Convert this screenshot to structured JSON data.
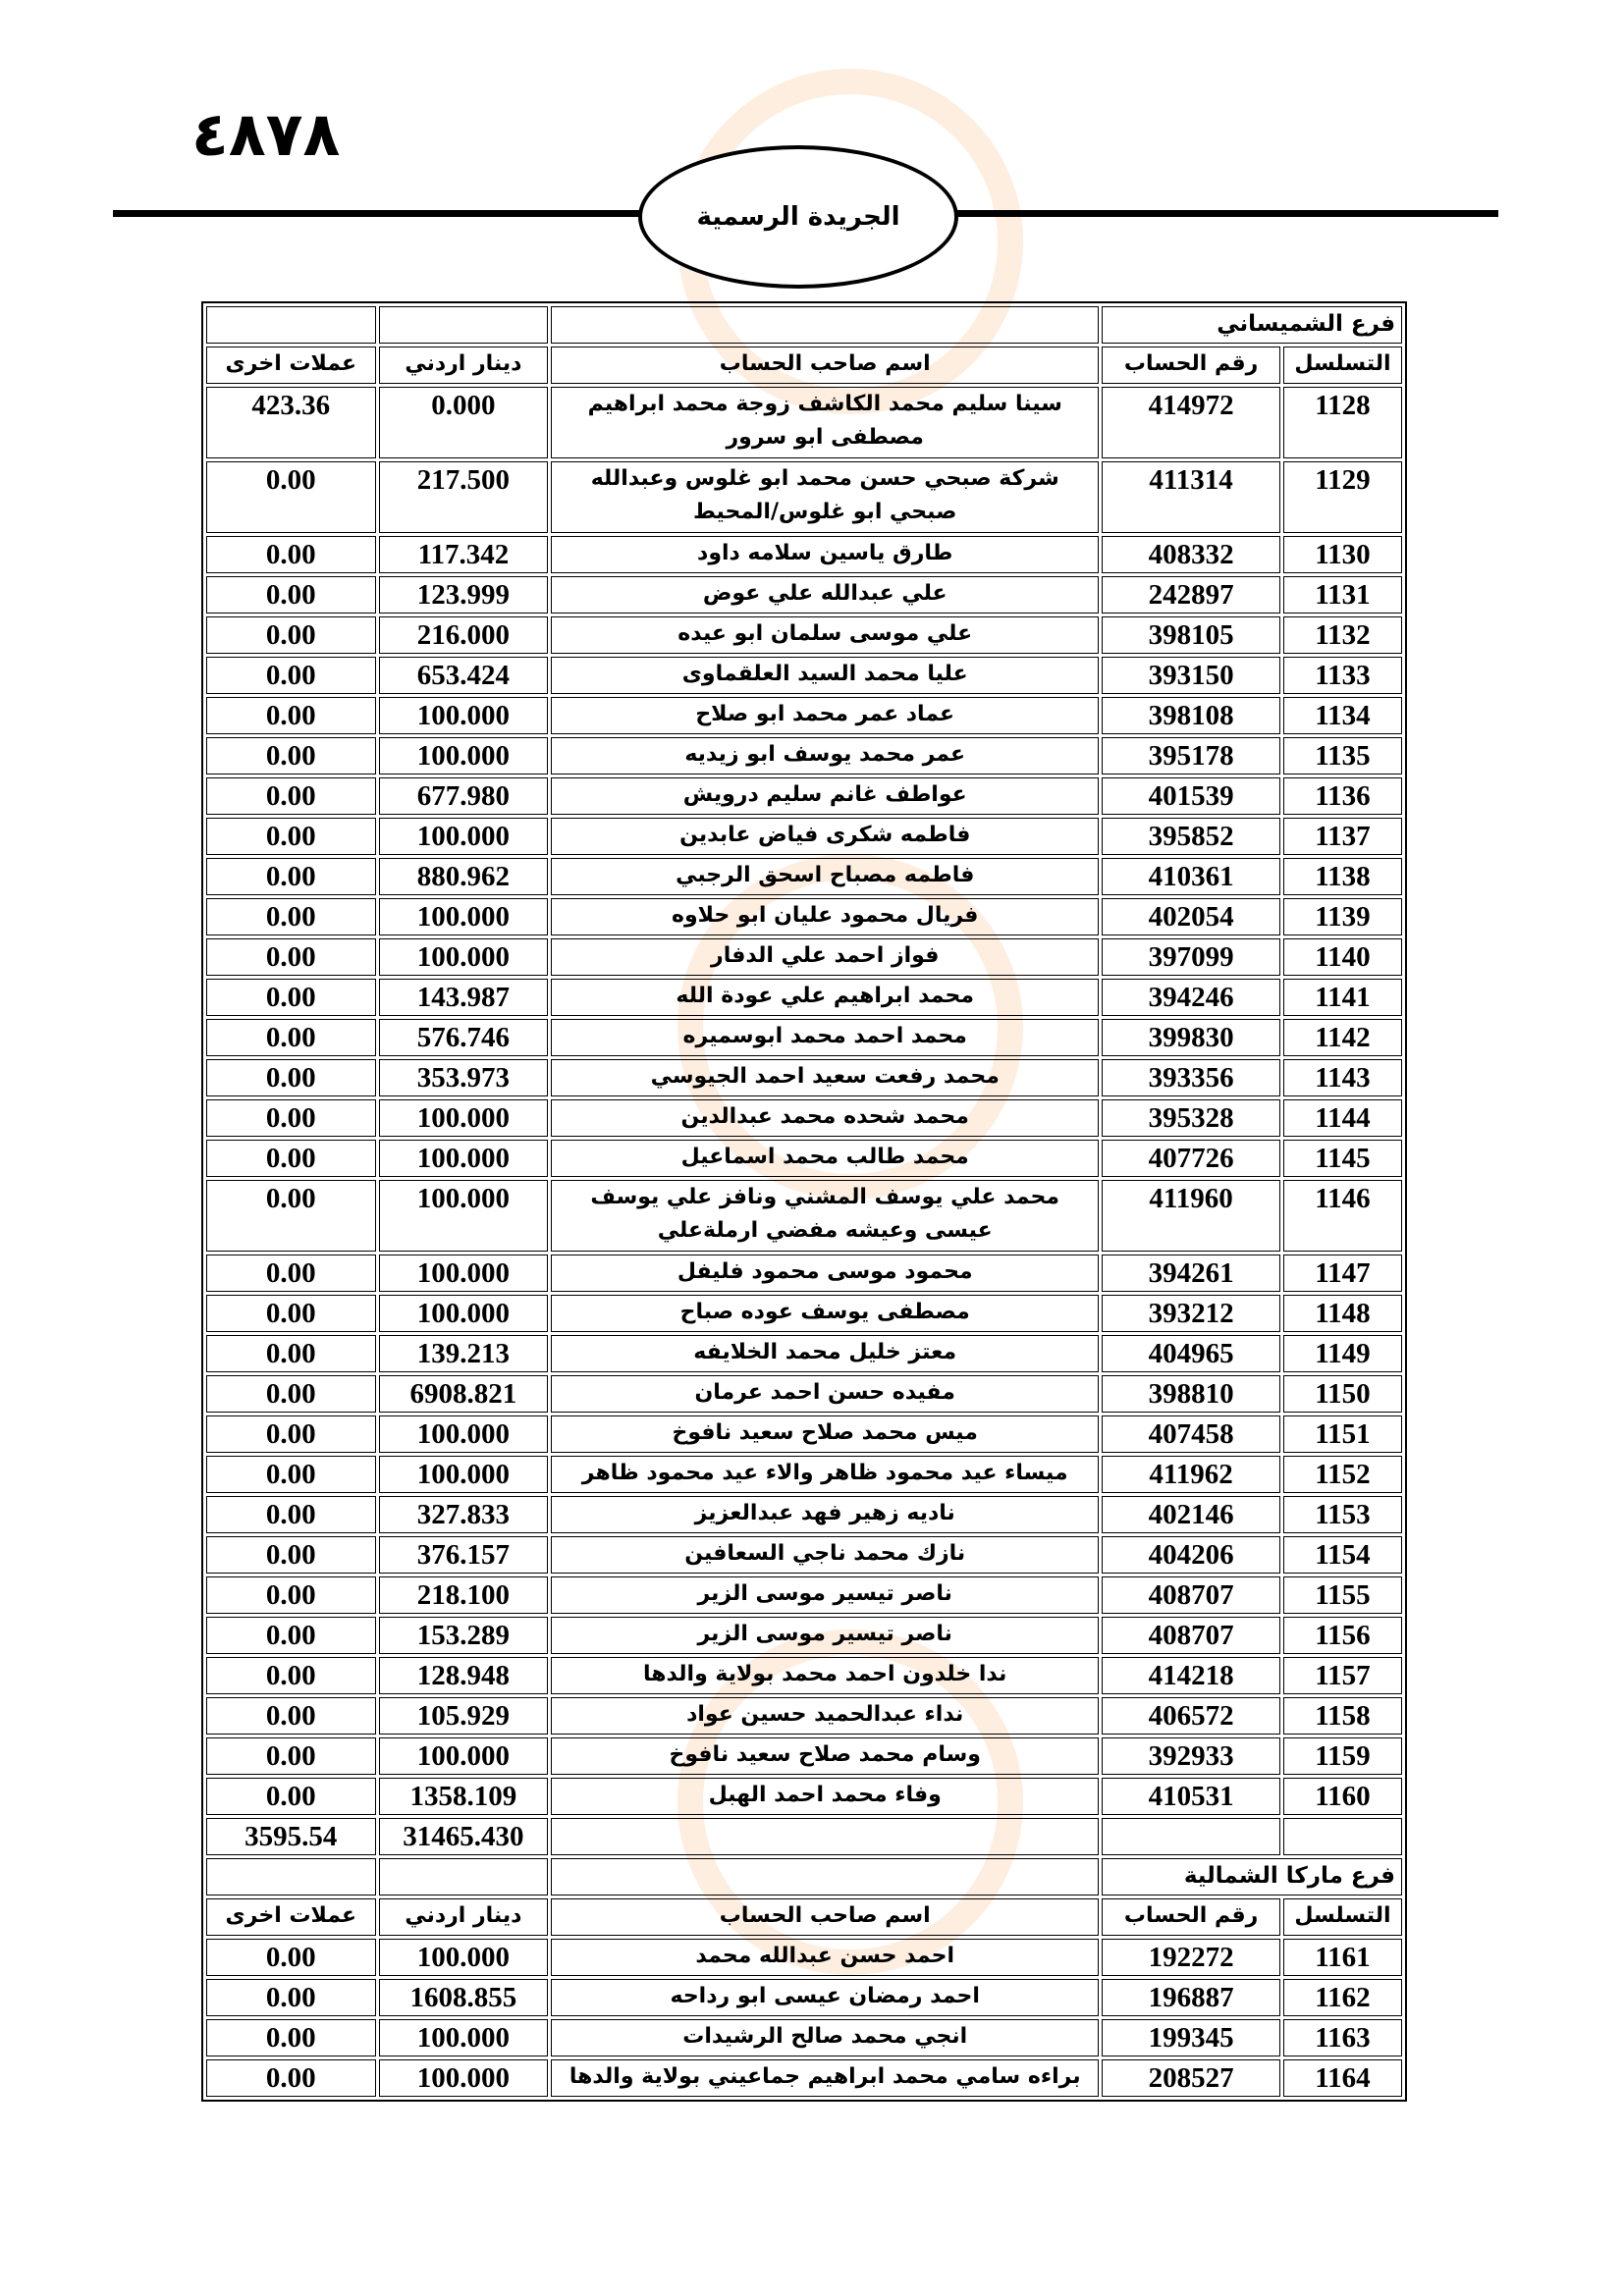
{
  "header": {
    "page_number": "٤٨٧٨",
    "title": "الجريدة الرسمية"
  },
  "columns": {
    "serial": "التسلسل",
    "account_no": "رقم الحساب",
    "owner": "اسم صاحب الحساب",
    "jod": "دينار اردني",
    "other": "عملات اخرى"
  },
  "sections": [
    {
      "branch": "فرع الشميساني",
      "rows": [
        [
          "1128",
          "414972",
          "سينا سليم محمد الكاشف زوجة محمد ابراهيم مصطفى ابو سرور",
          "0.000",
          "423.36"
        ],
        [
          "1129",
          "411314",
          "شركة صبحي حسن محمد ابو غلوس وعبدالله صبحي ابو غلوس/المحيط",
          "217.500",
          "0.00"
        ],
        [
          "1130",
          "408332",
          "طارق ياسين سلامه داود",
          "117.342",
          "0.00"
        ],
        [
          "1131",
          "242897",
          "علي عبدالله علي عوض",
          "123.999",
          "0.00"
        ],
        [
          "1132",
          "398105",
          "علي موسى سلمان ابو عيده",
          "216.000",
          "0.00"
        ],
        [
          "1133",
          "393150",
          "عليا محمد السيد العلقماوى",
          "653.424",
          "0.00"
        ],
        [
          "1134",
          "398108",
          "عماد عمر محمد ابو صلاح",
          "100.000",
          "0.00"
        ],
        [
          "1135",
          "395178",
          "عمر محمد يوسف ابو زيديه",
          "100.000",
          "0.00"
        ],
        [
          "1136",
          "401539",
          "عواطف غانم سليم درويش",
          "677.980",
          "0.00"
        ],
        [
          "1137",
          "395852",
          "فاطمه شكرى فياض عابدين",
          "100.000",
          "0.00"
        ],
        [
          "1138",
          "410361",
          "فاطمه مصباح اسحق الرجبي",
          "880.962",
          "0.00"
        ],
        [
          "1139",
          "402054",
          "فريال محمود عليان ابو حلاوه",
          "100.000",
          "0.00"
        ],
        [
          "1140",
          "397099",
          "فواز احمد علي الدفار",
          "100.000",
          "0.00"
        ],
        [
          "1141",
          "394246",
          "محمد ابراهيم علي عودة الله",
          "143.987",
          "0.00"
        ],
        [
          "1142",
          "399830",
          "محمد احمد محمد ابوسميره",
          "576.746",
          "0.00"
        ],
        [
          "1143",
          "393356",
          "محمد رفعت سعيد احمد الجيوسي",
          "353.973",
          "0.00"
        ],
        [
          "1144",
          "395328",
          "محمد شحده محمد عبدالدين",
          "100.000",
          "0.00"
        ],
        [
          "1145",
          "407726",
          "محمد طالب محمد اسماعيل",
          "100.000",
          "0.00"
        ],
        [
          "1146",
          "411960",
          "محمد علي يوسف المشني ونافز علي يوسف عيسى وعيشه مفضي ارملةعلي",
          "100.000",
          "0.00"
        ],
        [
          "1147",
          "394261",
          "محمود موسى محمود فليفل",
          "100.000",
          "0.00"
        ],
        [
          "1148",
          "393212",
          "مصطفى يوسف عوده صباح",
          "100.000",
          "0.00"
        ],
        [
          "1149",
          "404965",
          "معتز خليل محمد الخلايفه",
          "139.213",
          "0.00"
        ],
        [
          "1150",
          "398810",
          "مفيده حسن احمد عرمان",
          "6908.821",
          "0.00"
        ],
        [
          "1151",
          "407458",
          "ميس محمد صلاح سعيد نافوخ",
          "100.000",
          "0.00"
        ],
        [
          "1152",
          "411962",
          "ميساء عيد محمود ظاهر والاء عيد محمود ظاهر",
          "100.000",
          "0.00"
        ],
        [
          "1153",
          "402146",
          "ناديه زهير فهد عبدالعزيز",
          "327.833",
          "0.00"
        ],
        [
          "1154",
          "404206",
          "نازك محمد ناجي السعافين",
          "376.157",
          "0.00"
        ],
        [
          "1155",
          "408707",
          "ناصر تيسير موسى الزير",
          "218.100",
          "0.00"
        ],
        [
          "1156",
          "408707",
          "ناصر تيسير موسى الزير",
          "153.289",
          "0.00"
        ],
        [
          "1157",
          "414218",
          "ندا خلدون احمد محمد بولاية والدها",
          "128.948",
          "0.00"
        ],
        [
          "1158",
          "406572",
          "نداء عبدالحميد حسين عواد",
          "105.929",
          "0.00"
        ],
        [
          "1159",
          "392933",
          "وسام محمد صلاح سعيد نافوخ",
          "100.000",
          "0.00"
        ],
        [
          "1160",
          "410531",
          "وفاء محمد احمد الهبل",
          "1358.109",
          "0.00"
        ]
      ],
      "total_jod": "31465.430",
      "total_other": "3595.54"
    },
    {
      "branch": "فرع ماركا الشمالية",
      "rows": [
        [
          "1161",
          "192272",
          "احمد حسن عبدالله محمد",
          "100.000",
          "0.00"
        ],
        [
          "1162",
          "196887",
          "احمد رمضان عيسى ابو رداحه",
          "1608.855",
          "0.00"
        ],
        [
          "1163",
          "199345",
          "انجي محمد صالح الرشيدات",
          "100.000",
          "0.00"
        ],
        [
          "1164",
          "208527",
          "براءه سامي محمد ابراهيم جماعيني بولاية والدها",
          "100.000",
          "0.00"
        ]
      ]
    }
  ]
}
